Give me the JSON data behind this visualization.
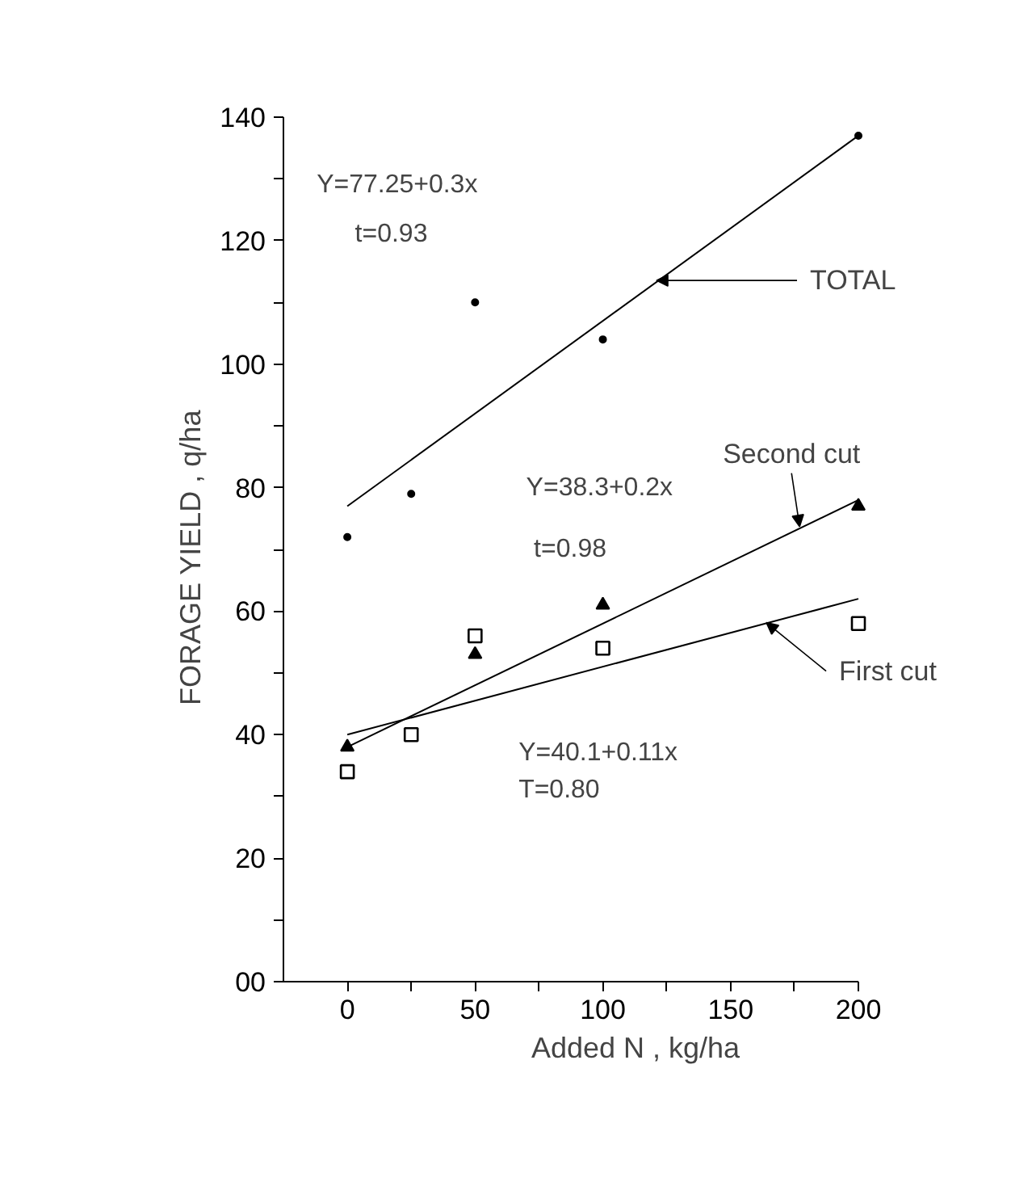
{
  "chart_data": {
    "type": "scatter",
    "xlabel": "Added  N ,  kg/ha",
    "ylabel": "FORAGE YIELD ,   q/ha",
    "xlim": [
      -25,
      200
    ],
    "xticks": [
      0,
      {
        "value": 25,
        "label": null
      },
      50,
      {
        "value": 75,
        "label": null
      },
      100,
      {
        "value": 125,
        "label": null
      },
      150,
      {
        "value": 175,
        "label": null
      },
      200
    ],
    "ylim": [
      0,
      140
    ],
    "yticks": [
      {
        "value": 0,
        "label": "00"
      },
      {
        "value": 10,
        "label": null
      },
      20,
      {
        "value": 30,
        "label": null
      },
      40,
      {
        "value": 50,
        "label": null
      },
      60,
      {
        "value": 70,
        "label": null
      },
      80,
      {
        "value": 90,
        "label": null
      },
      100,
      {
        "value": 110,
        "label": null
      },
      120,
      {
        "value": 130,
        "label": null
      },
      140
    ],
    "grid": false,
    "series": [
      {
        "marker": "circle",
        "color": "#000000",
        "x": [
          0,
          25,
          50,
          100,
          200
        ],
        "values": [
          72,
          79,
          110,
          104,
          137
        ]
      },
      {
        "marker": "triangle",
        "color": "#000000",
        "x": [
          0,
          50,
          100,
          200
        ],
        "values": [
          38,
          53,
          61,
          77
        ]
      },
      {
        "marker": "square",
        "color": "#000000",
        "x": [
          0,
          25,
          50,
          100,
          200
        ],
        "values": [
          34,
          40,
          56,
          54,
          58
        ]
      },
      {
        "type": "line",
        "color": "#000000",
        "x": [
          0,
          200
        ],
        "values": [
          77,
          137
        ]
      },
      {
        "type": "line",
        "color": "#000000",
        "x": [
          0,
          200
        ],
        "values": [
          38,
          78
        ]
      },
      {
        "type": "line",
        "color": "#000000",
        "x": [
          0,
          200
        ],
        "values": [
          40,
          62
        ]
      }
    ],
    "annotations": [
      "Y=77.25+0.3x",
      "t=0.93",
      "Y=38.3+0.2x",
      "t=0.98",
      "Y=40.1+0.11x",
      "T=0.80",
      {
        "text": "TOTAL",
        "x": 121,
        "y": 113.55
      },
      {
        "text": "Second cut",
        "x": 177,
        "y": 73.7
      },
      {
        "text": "First cut",
        "x": 164,
        "y": 58.14
      }
    ]
  }
}
